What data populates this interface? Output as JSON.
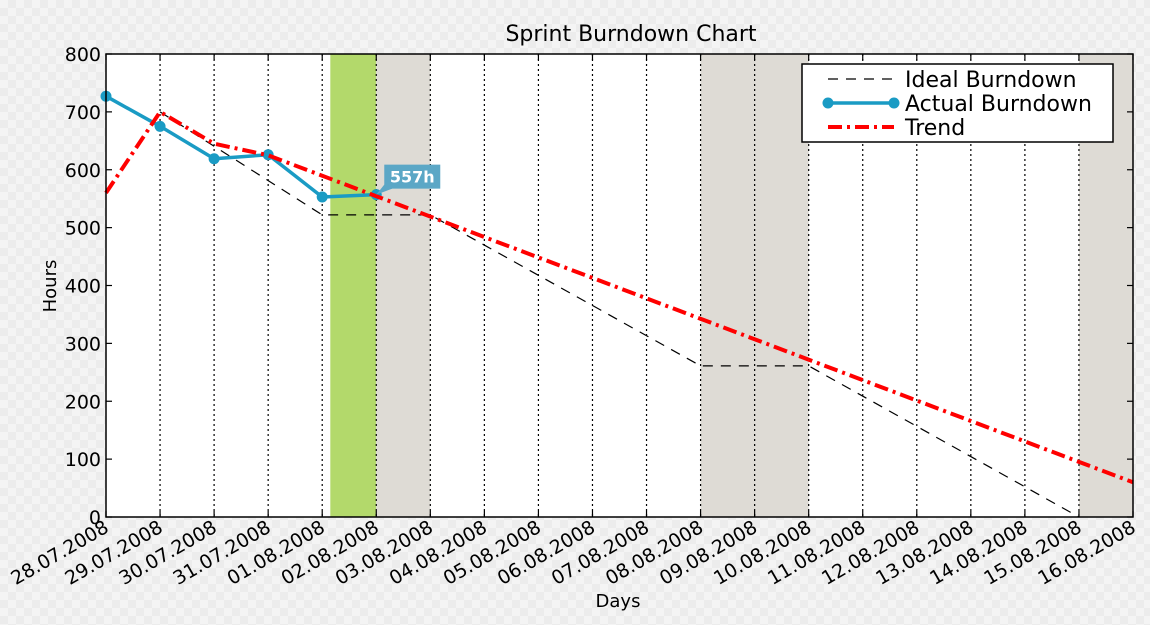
{
  "chart_data": {
    "type": "line",
    "title": "Sprint Burndown Chart",
    "xlabel": "Days",
    "ylabel": "Hours",
    "ylim": [
      0,
      800
    ],
    "yticks": [
      0,
      100,
      200,
      300,
      400,
      500,
      600,
      700,
      800
    ],
    "categories": [
      "28.07.2008",
      "29.07.2008",
      "30.07.2008",
      "31.07.2008",
      "01.08.2008",
      "02.08.2008",
      "03.08.2008",
      "04.08.2008",
      "05.08.2008",
      "06.08.2008",
      "07.08.2008",
      "08.08.2008",
      "09.08.2008",
      "10.08.2008",
      "11.08.2008",
      "12.08.2008",
      "13.08.2008",
      "14.08.2008",
      "15.08.2008",
      "16.08.2008"
    ],
    "grid": "vertical dotted lines at each day",
    "legend_position": "top-right",
    "series": [
      {
        "name": "Ideal Burndown",
        "style": "dashed",
        "color": "#000000",
        "points": [
          [
            1,
            700
          ],
          [
            4,
            522
          ],
          [
            6,
            522
          ],
          [
            11,
            261
          ],
          [
            13,
            261
          ],
          [
            18,
            0
          ]
        ]
      },
      {
        "name": "Actual Burndown",
        "style": "solid-with-markers",
        "color": "#1a9bc4",
        "points": [
          [
            0,
            727
          ],
          [
            1,
            675
          ],
          [
            2,
            619
          ],
          [
            3,
            626
          ],
          [
            4,
            553
          ],
          [
            5,
            557
          ]
        ]
      },
      {
        "name": "Trend",
        "style": "dash-dot",
        "color": "#ff0000",
        "points": [
          [
            0,
            560
          ],
          [
            1,
            700
          ],
          [
            2,
            645
          ],
          [
            3,
            625
          ],
          [
            19,
            60
          ]
        ]
      }
    ],
    "shaded_regions": [
      {
        "kind": "current-day",
        "from": 4.15,
        "to": 5,
        "color": "#b3d96b"
      },
      {
        "kind": "weekend",
        "from": 5,
        "to": 6,
        "color": "#dedbd5"
      },
      {
        "kind": "weekend",
        "from": 11,
        "to": 13,
        "color": "#dedbd5"
      },
      {
        "kind": "weekend",
        "from": 18,
        "to": 19,
        "color": "#dedbd5"
      }
    ],
    "annotations": [
      {
        "text": "557h",
        "x": 5,
        "y": 557,
        "color": "#5ba7c6"
      }
    ]
  }
}
